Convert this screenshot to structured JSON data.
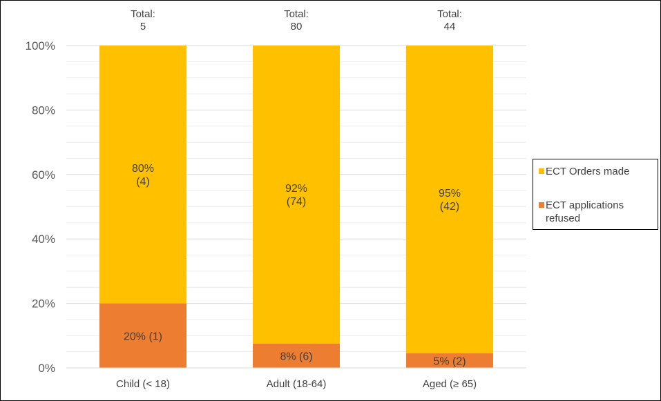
{
  "chart_data": {
    "type": "bar",
    "stacked": true,
    "percent": true,
    "categories": [
      "Child (< 18)",
      "Adult (18-64)",
      "Aged (≥ 65)"
    ],
    "totals": [
      {
        "label": "Total:",
        "value": "5"
      },
      {
        "label": "Total:",
        "value": "80"
      },
      {
        "label": "Total:",
        "value": "44"
      }
    ],
    "series": [
      {
        "name": "ECT applications refused",
        "color": "#ED7D31",
        "values": [
          20,
          7.5,
          4.5
        ],
        "labels": [
          "20% (1)",
          "8% (6)",
          "5% (2)"
        ]
      },
      {
        "name": "ECT Orders made",
        "color": "#FFC000",
        "values": [
          80,
          92.5,
          95.5
        ],
        "labels": [
          [
            "80%",
            "(4)"
          ],
          [
            "92%",
            "(74)"
          ],
          [
            "95%",
            "(42)"
          ]
        ]
      }
    ],
    "yticks": [
      "0%",
      "20%",
      "40%",
      "60%",
      "80%",
      "100%"
    ],
    "ylim": [
      0,
      100
    ],
    "grid": true,
    "legend": "right"
  }
}
